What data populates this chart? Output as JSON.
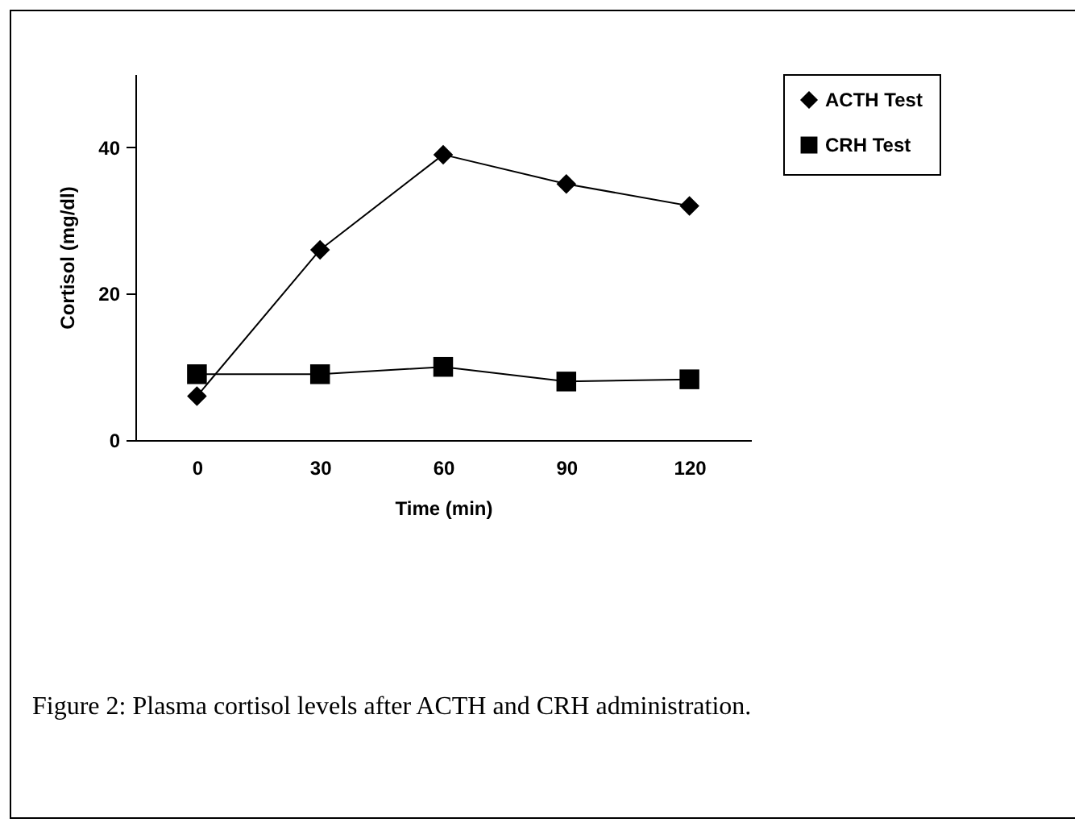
{
  "chart_data": {
    "type": "line",
    "xlabel": "Time (min)",
    "ylabel": "Cortisol (mg/dl)",
    "categories": [
      "0",
      "30",
      "60",
      "90",
      "120"
    ],
    "ylim": [
      0,
      50
    ],
    "yticks": [
      0,
      20,
      40
    ],
    "grid": false,
    "legend": "right",
    "series": [
      {
        "name": "ACTH Test",
        "color": "#000000",
        "marker": "diamond",
        "values": [
          6,
          26,
          39,
          35,
          32
        ]
      },
      {
        "name": "CRH Test",
        "color": "#000000",
        "marker": "square",
        "values": [
          9,
          9,
          10,
          8,
          8.3
        ]
      }
    ],
    "annotations": [
      "Figure 2: Plasma cortisol levels after ACTH and CRH administration."
    ]
  }
}
